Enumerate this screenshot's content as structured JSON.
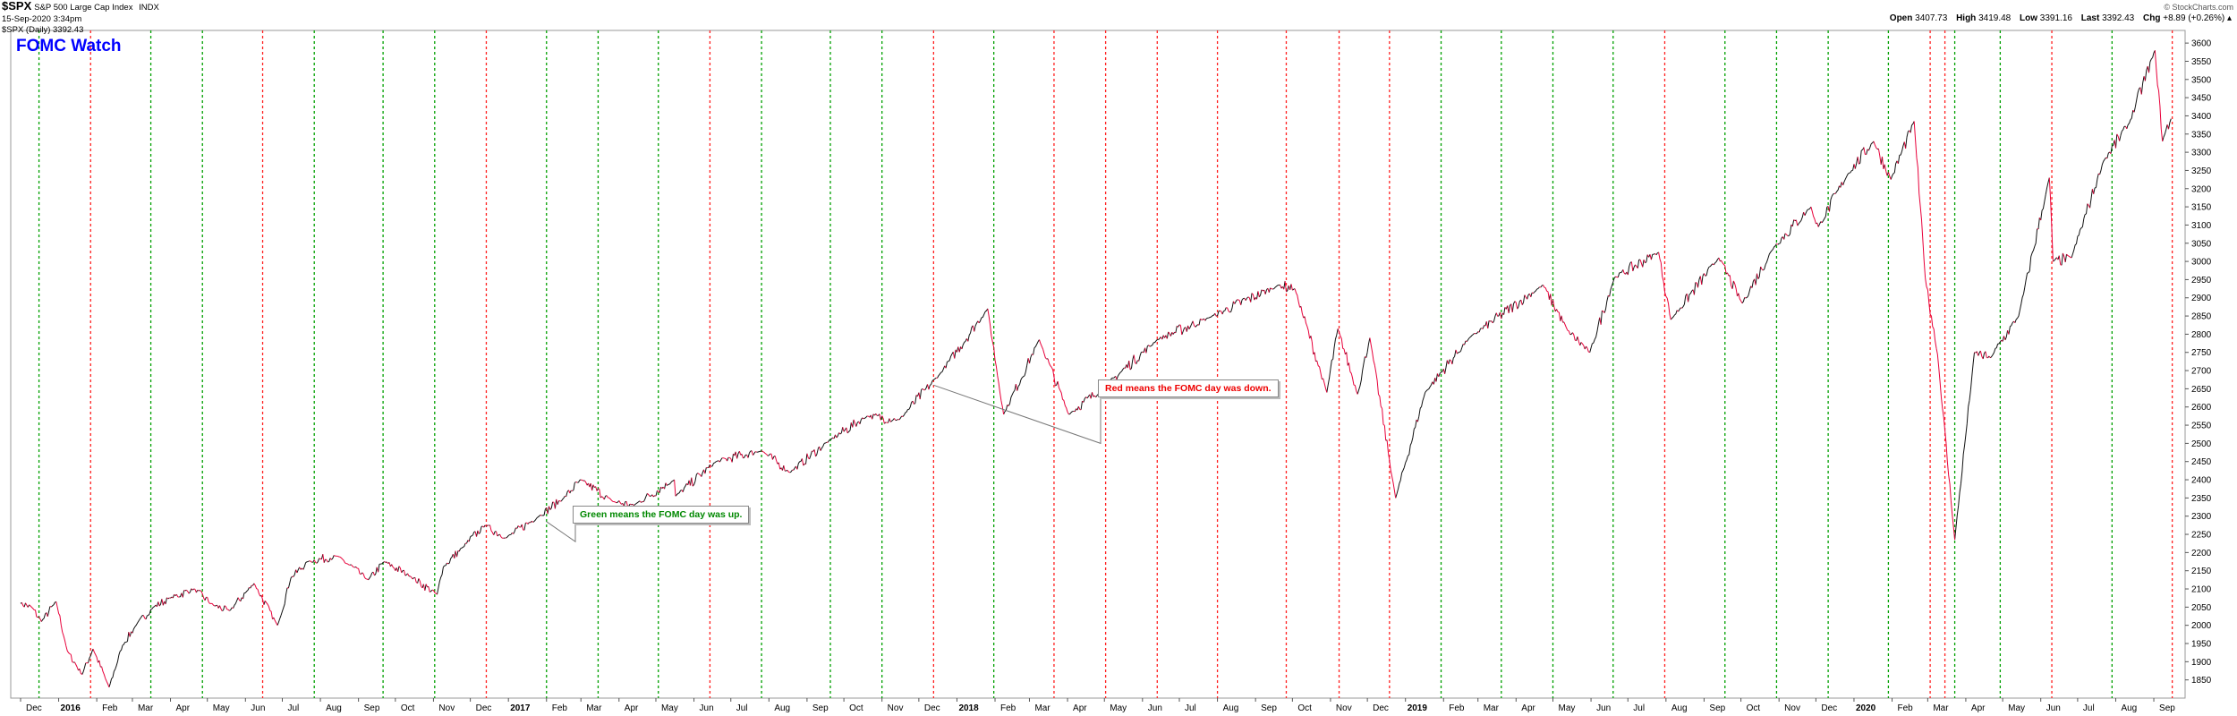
{
  "header": {
    "ticker": "$SPX",
    "description": "S&P 500 Large Cap Index",
    "exchange": "INDX",
    "datetime": "15-Sep-2020 3:34pm",
    "legend": "$SPX (Daily) 3392.43",
    "credit": "© StockCharts.com",
    "open_label": "Open",
    "open": "3407.73",
    "high_label": "High",
    "high": "3419.48",
    "low_label": "Low",
    "low": "3391.16",
    "last_label": "Last",
    "last": "3392.43",
    "chg_label": "Chg",
    "chg": "+8.89 (+0.26%)"
  },
  "title": "FOMC Watch",
  "annotations": {
    "red": "Red means the FOMC day was down.",
    "green": "Green means the FOMC day was up."
  },
  "colors": {
    "title": "#0000ff",
    "up_line": "#00a000",
    "down_line": "#ff2020",
    "price": "#111111",
    "price_down": "#e8003a",
    "grid": "#cccccc"
  },
  "chart_data": {
    "type": "line",
    "series": [
      {
        "values": [
          [
            "2015-12-01",
            2060
          ],
          [
            "2015-12-10",
            2050
          ],
          [
            "2015-12-18",
            2010
          ],
          [
            "2015-12-30",
            2065
          ],
          [
            "2016-01-08",
            1930
          ],
          [
            "2016-01-20",
            1865
          ],
          [
            "2016-01-29",
            1935
          ],
          [
            "2016-02-11",
            1830
          ],
          [
            "2016-02-22",
            1945
          ],
          [
            "2016-03-04",
            2000
          ],
          [
            "2016-03-18",
            2050
          ],
          [
            "2016-04-01",
            2075
          ],
          [
            "2016-04-20",
            2100
          ],
          [
            "2016-05-06",
            2055
          ],
          [
            "2016-05-19",
            2040
          ],
          [
            "2016-06-08",
            2115
          ],
          [
            "2016-06-27",
            2000
          ],
          [
            "2016-07-08",
            2130
          ],
          [
            "2016-07-22",
            2175
          ],
          [
            "2016-08-15",
            2190
          ],
          [
            "2016-09-09",
            2125
          ],
          [
            "2016-09-22",
            2175
          ],
          [
            "2016-10-13",
            2135
          ],
          [
            "2016-11-04",
            2085
          ],
          [
            "2016-11-09",
            2160
          ],
          [
            "2016-11-25",
            2215
          ],
          [
            "2016-12-13",
            2275
          ],
          [
            "2016-12-30",
            2240
          ],
          [
            "2017-01-26",
            2300
          ],
          [
            "2017-02-15",
            2350
          ],
          [
            "2017-03-01",
            2400
          ],
          [
            "2017-03-27",
            2340
          ],
          [
            "2017-04-13",
            2330
          ],
          [
            "2017-05-16",
            2400
          ],
          [
            "2017-05-17",
            2355
          ],
          [
            "2017-06-19",
            2450
          ],
          [
            "2017-07-26",
            2480
          ],
          [
            "2017-08-18",
            2420
          ],
          [
            "2017-09-20",
            2510
          ],
          [
            "2017-10-20",
            2575
          ],
          [
            "2017-11-15",
            2565
          ],
          [
            "2017-12-18",
            2690
          ],
          [
            "2018-01-26",
            2870
          ],
          [
            "2018-02-08",
            2580
          ],
          [
            "2018-03-09",
            2785
          ],
          [
            "2018-04-02",
            2580
          ],
          [
            "2018-05-01",
            2655
          ],
          [
            "2018-06-13",
            2785
          ],
          [
            "2018-07-25",
            2845
          ],
          [
            "2018-09-20",
            2935
          ],
          [
            "2018-10-03",
            2925
          ],
          [
            "2018-10-29",
            2640
          ],
          [
            "2018-11-07",
            2815
          ],
          [
            "2018-11-23",
            2635
          ],
          [
            "2018-12-03",
            2790
          ],
          [
            "2018-12-24",
            2350
          ],
          [
            "2019-01-17",
            2640
          ],
          [
            "2019-02-22",
            2790
          ],
          [
            "2019-04-23",
            2935
          ],
          [
            "2019-05-13",
            2810
          ],
          [
            "2019-05-31",
            2750
          ],
          [
            "2019-06-20",
            2955
          ],
          [
            "2019-07-26",
            3025
          ],
          [
            "2019-08-05",
            2840
          ],
          [
            "2019-09-13",
            3010
          ],
          [
            "2019-10-02",
            2885
          ],
          [
            "2019-10-28",
            3040
          ],
          [
            "2019-11-27",
            3150
          ],
          [
            "2019-12-03",
            3095
          ],
          [
            "2019-12-27",
            3240
          ],
          [
            "2020-01-17",
            3330
          ],
          [
            "2020-01-31",
            3225
          ],
          [
            "2020-02-19",
            3385
          ],
          [
            "2020-02-28",
            2955
          ],
          [
            "2020-03-09",
            2745
          ],
          [
            "2020-03-23",
            2235
          ],
          [
            "2020-04-08",
            2750
          ],
          [
            "2020-04-21",
            2735
          ],
          [
            "2020-05-14",
            2850
          ],
          [
            "2020-06-08",
            3230
          ],
          [
            "2020-06-11",
            3000
          ],
          [
            "2020-06-26",
            3010
          ],
          [
            "2020-07-22",
            3275
          ],
          [
            "2020-08-12",
            3380
          ],
          [
            "2020-09-02",
            3580
          ],
          [
            "2020-09-08",
            3330
          ],
          [
            "2020-09-15",
            3392
          ]
        ]
      }
    ],
    "fomc_up_dates": [
      "2015-12-16",
      "2016-03-16",
      "2016-04-27",
      "2016-07-27",
      "2016-09-21",
      "2016-11-02",
      "2017-02-01",
      "2017-03-15",
      "2017-05-03",
      "2017-07-26",
      "2017-09-20",
      "2017-11-01",
      "2018-01-31",
      "2019-01-30",
      "2019-03-20",
      "2019-05-01",
      "2019-06-19",
      "2019-09-18",
      "2019-10-30",
      "2019-12-11",
      "2020-01-29",
      "2020-03-23",
      "2020-04-29",
      "2020-07-29"
    ],
    "fomc_down_dates": [
      "2016-01-27",
      "2016-06-15",
      "2016-12-14",
      "2017-06-14",
      "2017-12-13",
      "2018-03-21",
      "2018-05-02",
      "2018-06-13",
      "2018-08-01",
      "2018-09-26",
      "2018-11-08",
      "2018-12-19",
      "2019-07-31",
      "2020-03-03",
      "2020-03-15",
      "2020-06-10",
      "2020-09-16"
    ],
    "y_ticks": [
      1850,
      1900,
      1950,
      2000,
      2050,
      2100,
      2150,
      2200,
      2250,
      2300,
      2350,
      2400,
      2450,
      2500,
      2550,
      2600,
      2650,
      2700,
      2750,
      2800,
      2850,
      2900,
      2950,
      3000,
      3050,
      3100,
      3150,
      3200,
      3250,
      3300,
      3350,
      3400,
      3450,
      3500,
      3550,
      3600
    ],
    "ylim": [
      1800,
      3620
    ],
    "x_range": [
      "2015-11-23",
      "2020-09-25"
    ],
    "x_ticks": [
      {
        "date": "2015-12-01",
        "label": "Dec",
        "bold": false
      },
      {
        "date": "2016-01-01",
        "label": "2016",
        "bold": true
      },
      {
        "date": "2016-02-01",
        "label": "Feb",
        "bold": false
      },
      {
        "date": "2016-03-01",
        "label": "Mar",
        "bold": false
      },
      {
        "date": "2016-04-01",
        "label": "Apr",
        "bold": false
      },
      {
        "date": "2016-05-01",
        "label": "May",
        "bold": false
      },
      {
        "date": "2016-06-01",
        "label": "Jun",
        "bold": false
      },
      {
        "date": "2016-07-01",
        "label": "Jul",
        "bold": false
      },
      {
        "date": "2016-08-01",
        "label": "Aug",
        "bold": false
      },
      {
        "date": "2016-09-01",
        "label": "Sep",
        "bold": false
      },
      {
        "date": "2016-10-01",
        "label": "Oct",
        "bold": false
      },
      {
        "date": "2016-11-01",
        "label": "Nov",
        "bold": false
      },
      {
        "date": "2016-12-01",
        "label": "Dec",
        "bold": false
      },
      {
        "date": "2017-01-01",
        "label": "2017",
        "bold": true
      },
      {
        "date": "2017-02-01",
        "label": "Feb",
        "bold": false
      },
      {
        "date": "2017-03-01",
        "label": "Mar",
        "bold": false
      },
      {
        "date": "2017-04-01",
        "label": "Apr",
        "bold": false
      },
      {
        "date": "2017-05-01",
        "label": "May",
        "bold": false
      },
      {
        "date": "2017-06-01",
        "label": "Jun",
        "bold": false
      },
      {
        "date": "2017-07-01",
        "label": "Jul",
        "bold": false
      },
      {
        "date": "2017-08-01",
        "label": "Aug",
        "bold": false
      },
      {
        "date": "2017-09-01",
        "label": "Sep",
        "bold": false
      },
      {
        "date": "2017-10-01",
        "label": "Oct",
        "bold": false
      },
      {
        "date": "2017-11-01",
        "label": "Nov",
        "bold": false
      },
      {
        "date": "2017-12-01",
        "label": "Dec",
        "bold": false
      },
      {
        "date": "2018-01-01",
        "label": "2018",
        "bold": true
      },
      {
        "date": "2018-02-01",
        "label": "Feb",
        "bold": false
      },
      {
        "date": "2018-03-01",
        "label": "Mar",
        "bold": false
      },
      {
        "date": "2018-04-01",
        "label": "Apr",
        "bold": false
      },
      {
        "date": "2018-05-01",
        "label": "May",
        "bold": false
      },
      {
        "date": "2018-06-01",
        "label": "Jun",
        "bold": false
      },
      {
        "date": "2018-07-01",
        "label": "Jul",
        "bold": false
      },
      {
        "date": "2018-08-01",
        "label": "Aug",
        "bold": false
      },
      {
        "date": "2018-09-01",
        "label": "Sep",
        "bold": false
      },
      {
        "date": "2018-10-01",
        "label": "Oct",
        "bold": false
      },
      {
        "date": "2018-11-01",
        "label": "Nov",
        "bold": false
      },
      {
        "date": "2018-12-01",
        "label": "Dec",
        "bold": false
      },
      {
        "date": "2019-01-01",
        "label": "2019",
        "bold": true
      },
      {
        "date": "2019-02-01",
        "label": "Feb",
        "bold": false
      },
      {
        "date": "2019-03-01",
        "label": "Mar",
        "bold": false
      },
      {
        "date": "2019-04-01",
        "label": "Apr",
        "bold": false
      },
      {
        "date": "2019-05-01",
        "label": "May",
        "bold": false
      },
      {
        "date": "2019-06-01",
        "label": "Jun",
        "bold": false
      },
      {
        "date": "2019-07-01",
        "label": "Jul",
        "bold": false
      },
      {
        "date": "2019-08-01",
        "label": "Aug",
        "bold": false
      },
      {
        "date": "2019-09-01",
        "label": "Sep",
        "bold": false
      },
      {
        "date": "2019-10-01",
        "label": "Oct",
        "bold": false
      },
      {
        "date": "2019-11-01",
        "label": "Nov",
        "bold": false
      },
      {
        "date": "2019-12-01",
        "label": "Dec",
        "bold": false
      },
      {
        "date": "2020-01-01",
        "label": "2020",
        "bold": true
      },
      {
        "date": "2020-02-01",
        "label": "Feb",
        "bold": false
      },
      {
        "date": "2020-03-01",
        "label": "Mar",
        "bold": false
      },
      {
        "date": "2020-04-01",
        "label": "Apr",
        "bold": false
      },
      {
        "date": "2020-05-01",
        "label": "May",
        "bold": false
      },
      {
        "date": "2020-06-01",
        "label": "Jun",
        "bold": false
      },
      {
        "date": "2020-07-01",
        "label": "Jul",
        "bold": false
      },
      {
        "date": "2020-08-01",
        "label": "Aug",
        "bold": false
      },
      {
        "date": "2020-09-01",
        "label": "Sep",
        "bold": false
      }
    ]
  }
}
